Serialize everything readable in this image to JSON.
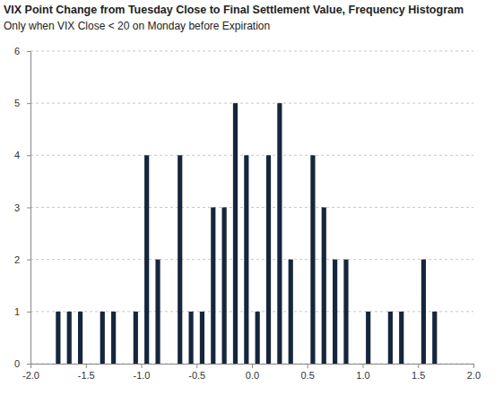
{
  "chart_data": {
    "type": "histogram",
    "title": "VIX Point Change from Tuesday Close to Final Settlement Value, Frequency Histogram",
    "subtitle": "Only when VIX Close < 20 on Monday before Expiration",
    "bins": [
      -1.8,
      -1.7,
      -1.6,
      -1.5,
      -1.4,
      -1.3,
      -1.2,
      -1.1,
      -1.0,
      -0.9,
      -0.8,
      -0.7,
      -0.6,
      -0.5,
      -0.4,
      -0.3,
      -0.2,
      -0.1,
      0.0,
      0.1,
      0.2,
      0.3,
      0.4,
      0.5,
      0.6,
      0.7,
      0.8,
      0.9,
      1.0,
      1.1,
      1.2,
      1.3,
      1.4,
      1.5,
      1.6,
      1.7
    ],
    "values": [
      1,
      1,
      1,
      0,
      1,
      1,
      0,
      1,
      4,
      2,
      0,
      4,
      1,
      1,
      3,
      3,
      5,
      4,
      1,
      4,
      5,
      2,
      0,
      4,
      3,
      2,
      2,
      0,
      1,
      0,
      1,
      1,
      0,
      2,
      1
    ],
    "color": "#15263d",
    "xlim": [
      -2.0,
      2.0
    ],
    "xticks": [
      {
        "value": -2.0,
        "label": "-2.0"
      },
      -1.5,
      {
        "value": -1.0,
        "label": "-1.0"
      },
      -0.5,
      {
        "value": 0.0,
        "label": "0.0"
      },
      0.5,
      {
        "value": 1.0,
        "label": "1.0"
      },
      1.5,
      {
        "value": 2.0,
        "label": "2.0"
      }
    ],
    "ylim": [
      0,
      6
    ],
    "yticks": [
      0,
      1,
      2,
      3,
      4,
      5,
      6
    ],
    "grid": true
  }
}
